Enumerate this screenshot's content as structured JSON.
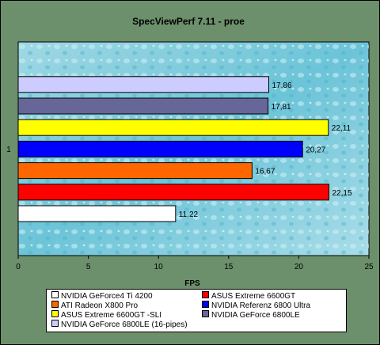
{
  "chart_data": {
    "type": "bar",
    "orientation": "horizontal",
    "title": "SpecViewPerf 7.11 - proe",
    "xlabel": "FPS",
    "ylabel": "",
    "categories": [
      "1"
    ],
    "xlim": [
      0,
      25
    ],
    "xticks": [
      "0",
      "5",
      "10",
      "15",
      "20",
      "25"
    ],
    "grid": false,
    "legend_position": "bottom",
    "series": [
      {
        "name": "NVIDIA GeForce4 Ti 4200",
        "value": 11.22,
        "label": "11,22",
        "color": "#ffffff"
      },
      {
        "name": "ASUS Extreme 6600GT",
        "value": 22.15,
        "label": "22,15",
        "color": "#ff0000"
      },
      {
        "name": "ATI Radeon X800 Pro",
        "value": 16.67,
        "label": "16,67",
        "color": "#ff6600"
      },
      {
        "name": "NVIDIA  Referenz 6800 Ultra",
        "value": 20.27,
        "label": "20,27",
        "color": "#0000ff"
      },
      {
        "name": "ASUS Extreme 6600GT -SLI",
        "value": 22.11,
        "label": "22,11",
        "color": "#ffff00"
      },
      {
        "name": "NVIDIA GeForce 6800LE",
        "value": 17.81,
        "label": "17,81",
        "color": "#666699"
      },
      {
        "name": "NVIDIA GeForce 6800LE (16-pipes)",
        "value": 17.86,
        "label": "17,86",
        "color": "#ccccff"
      }
    ]
  }
}
